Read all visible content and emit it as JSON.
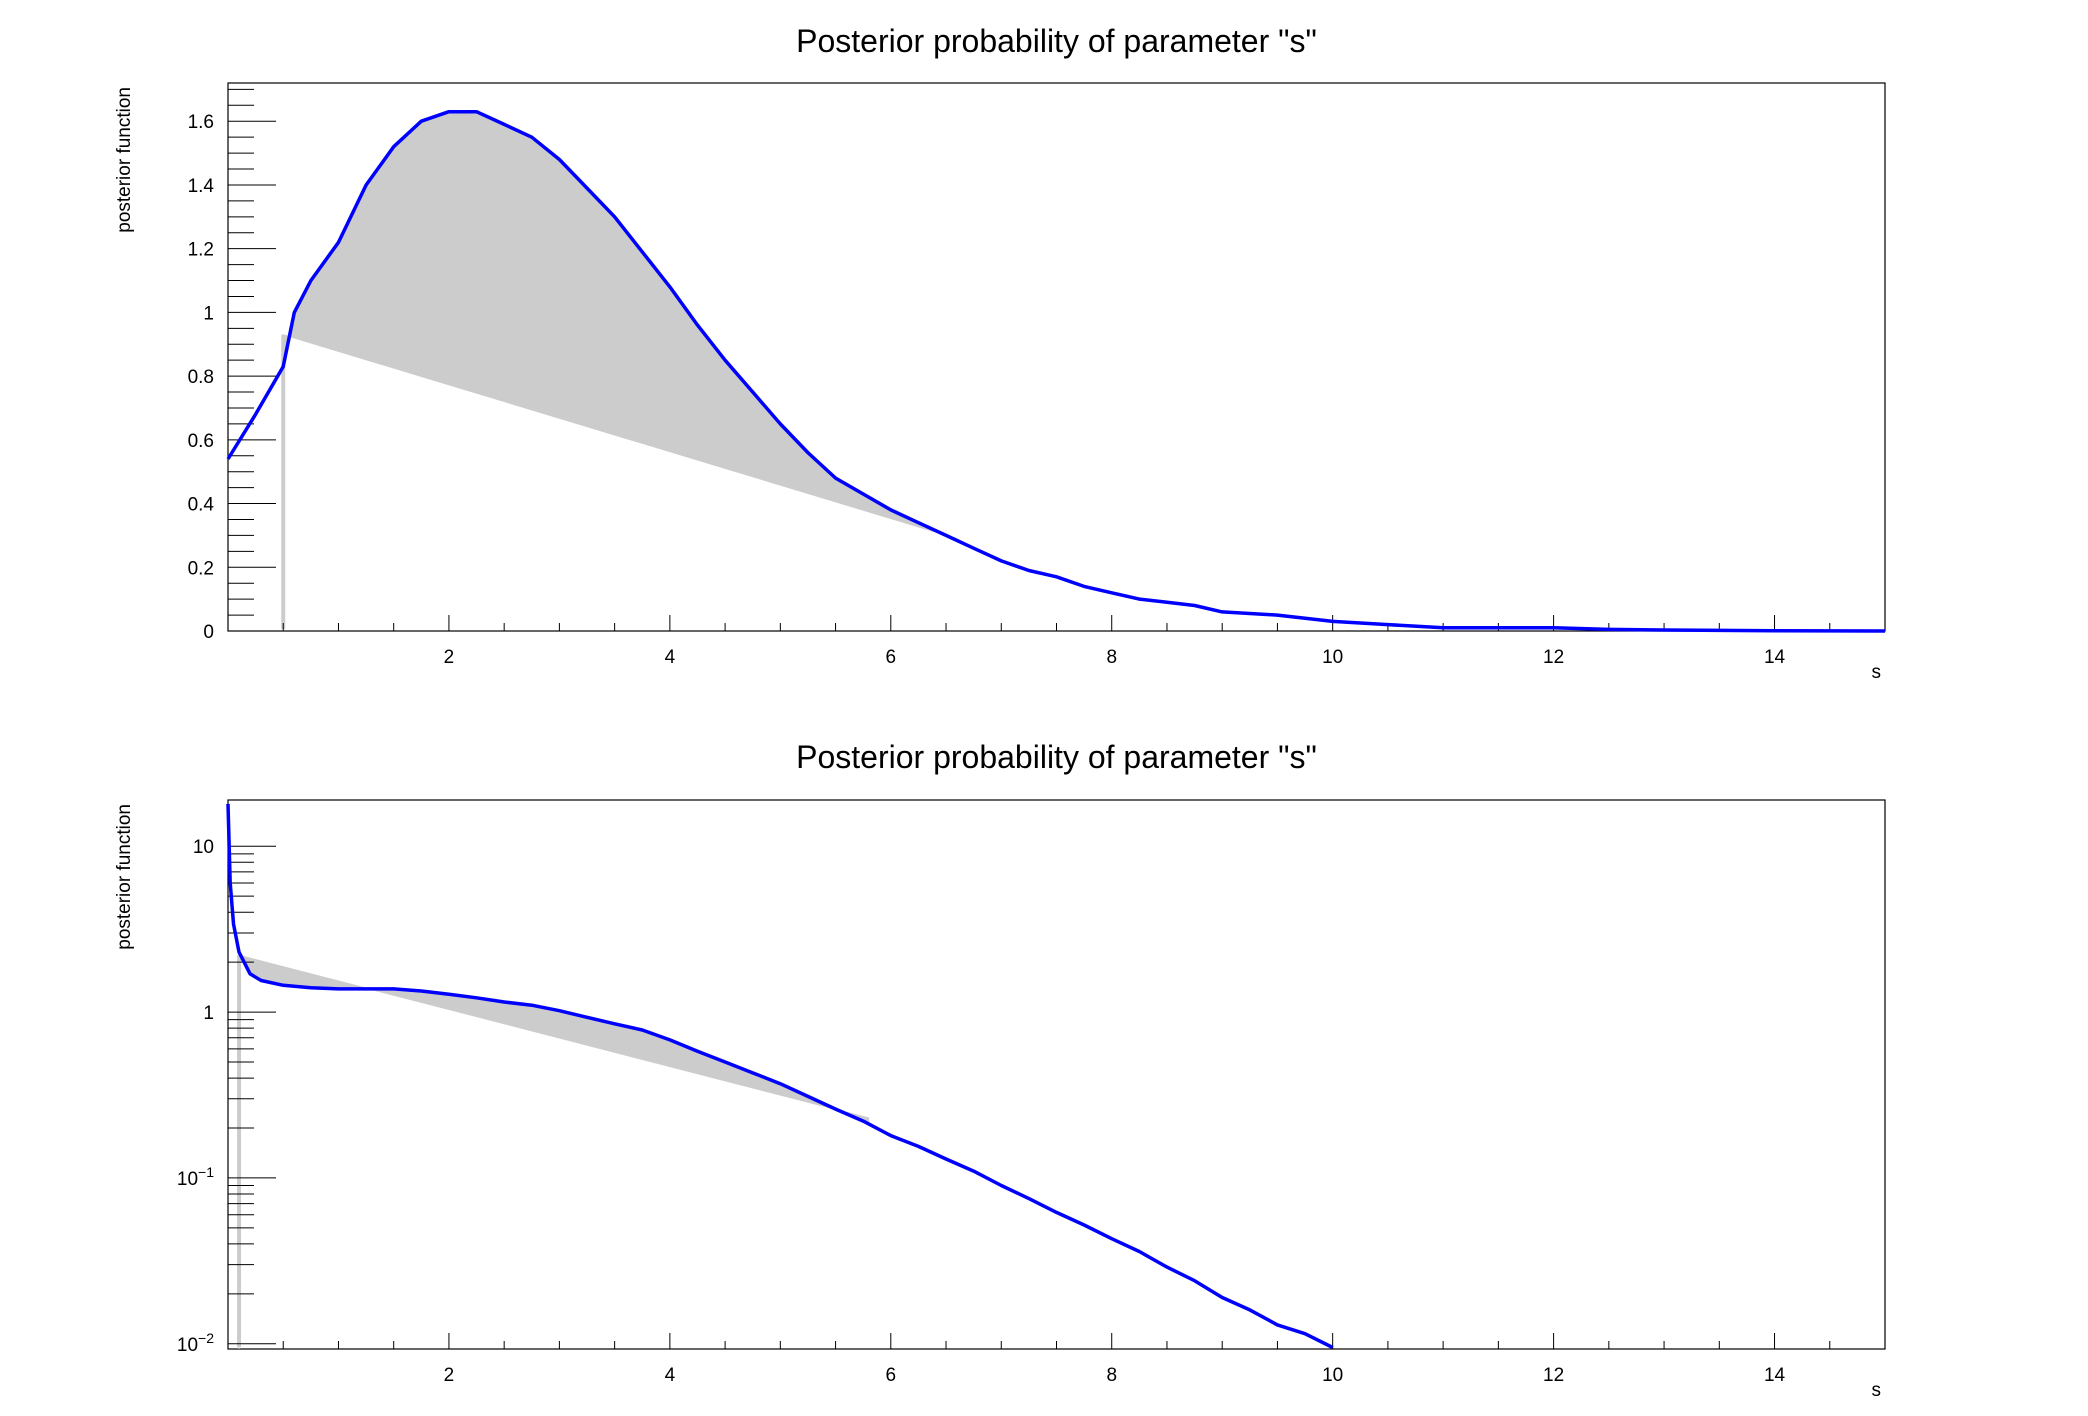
{
  "chart_data": [
    {
      "type": "area",
      "title": "Posterior probability of parameter \"s\"",
      "xlabel": "s",
      "ylabel": "posterior function",
      "xlim": [
        0,
        15
      ],
      "ylim": [
        0,
        1.72
      ],
      "yscale": "linear",
      "xticks": [
        2,
        4,
        6,
        8,
        10,
        12,
        14
      ],
      "yticks": [
        {
          "value": 0,
          "label": "0"
        },
        {
          "value": 0.2,
          "label": "0.2"
        },
        {
          "value": 0.4,
          "label": "0.4"
        },
        {
          "value": 0.6,
          "label": "0.6"
        },
        {
          "value": 0.8,
          "label": "0.8"
        },
        {
          "value": 1.0,
          "label": "1"
        },
        {
          "value": 1.2,
          "label": "1.2"
        },
        {
          "value": 1.4,
          "label": "1.4"
        },
        {
          "value": 1.6,
          "label": "1.6"
        }
      ],
      "grid": false,
      "colors": {
        "curve": "#0000ff",
        "band": "#cccccc"
      },
      "series": [
        {
          "x": [
            0.0,
            0.25,
            0.5,
            0.6,
            0.75,
            1.0,
            1.25,
            1.5,
            1.75,
            2.0,
            2.25,
            2.5,
            2.75,
            3.0,
            3.25,
            3.5,
            3.75,
            4.0,
            4.25,
            4.5,
            4.75,
            5.0,
            5.25,
            5.5,
            5.75,
            6.0,
            6.25,
            6.5,
            6.75,
            7.0,
            7.25,
            7.5,
            7.75,
            8.0,
            8.25,
            8.5,
            8.75,
            9.0,
            9.5,
            10.0,
            10.5,
            11.0,
            11.5,
            12.0,
            12.5,
            13.0,
            14.0,
            15.0
          ],
          "y": [
            0.54,
            0.68,
            0.83,
            1.0,
            1.1,
            1.22,
            1.4,
            1.52,
            1.6,
            1.63,
            1.63,
            1.59,
            1.55,
            1.48,
            1.39,
            1.3,
            1.19,
            1.08,
            0.96,
            0.85,
            0.75,
            0.65,
            0.56,
            0.48,
            0.43,
            0.38,
            0.34,
            0.3,
            0.26,
            0.22,
            0.19,
            0.17,
            0.14,
            0.12,
            0.1,
            0.09,
            0.08,
            0.06,
            0.05,
            0.03,
            0.02,
            0.01,
            0.01,
            0.01,
            0.005,
            0.003,
            0.001,
            0.0
          ]
        }
      ],
      "shaded_band": {
        "x_start": 0.5,
        "x_end": 6.6,
        "y_low_start": 0.93,
        "y_low_end": 0.29
      }
    },
    {
      "type": "area",
      "title": "Posterior probability of parameter \"s\"",
      "xlabel": "s",
      "ylabel": "posterior function",
      "xlim": [
        0,
        15
      ],
      "ylim": [
        0.0093,
        19
      ],
      "yscale": "log",
      "xticks": [
        2,
        4,
        6,
        8,
        10,
        12,
        14
      ],
      "yticks": [
        {
          "value": 0.01,
          "base": "10",
          "exp": "−2"
        },
        {
          "value": 0.1,
          "base": "10",
          "exp": "−1"
        },
        {
          "value": 1,
          "label": "1"
        },
        {
          "value": 10,
          "label": "10"
        }
      ],
      "grid": false,
      "colors": {
        "curve": "#0000ff",
        "band": "#cccccc"
      },
      "series": [
        {
          "x": [
            0.0,
            0.02,
            0.05,
            0.1,
            0.2,
            0.3,
            0.5,
            0.75,
            1.0,
            1.25,
            1.5,
            1.75,
            2.0,
            2.25,
            2.5,
            2.75,
            3.0,
            3.25,
            3.5,
            3.75,
            4.0,
            4.25,
            4.5,
            4.75,
            5.0,
            5.25,
            5.5,
            5.75,
            6.0,
            6.25,
            6.5,
            6.75,
            7.0,
            7.25,
            7.5,
            7.75,
            8.0,
            8.25,
            8.5,
            8.75,
            9.0,
            9.25,
            9.5,
            9.75,
            10.0
          ],
          "y": [
            18.0,
            6.0,
            3.4,
            2.3,
            1.7,
            1.55,
            1.45,
            1.4,
            1.38,
            1.38,
            1.38,
            1.34,
            1.28,
            1.22,
            1.15,
            1.1,
            1.02,
            0.93,
            0.85,
            0.78,
            0.68,
            0.58,
            0.5,
            0.43,
            0.37,
            0.31,
            0.26,
            0.22,
            0.18,
            0.155,
            0.13,
            0.11,
            0.09,
            0.075,
            0.062,
            0.052,
            0.043,
            0.036,
            0.029,
            0.024,
            0.019,
            0.016,
            0.013,
            0.0115,
            0.0095
          ]
        }
      ],
      "shaded_band": {
        "x_start": 0.1,
        "x_end": 5.8,
        "y_low_start": 2.2,
        "y_low_end": 0.23
      }
    }
  ]
}
